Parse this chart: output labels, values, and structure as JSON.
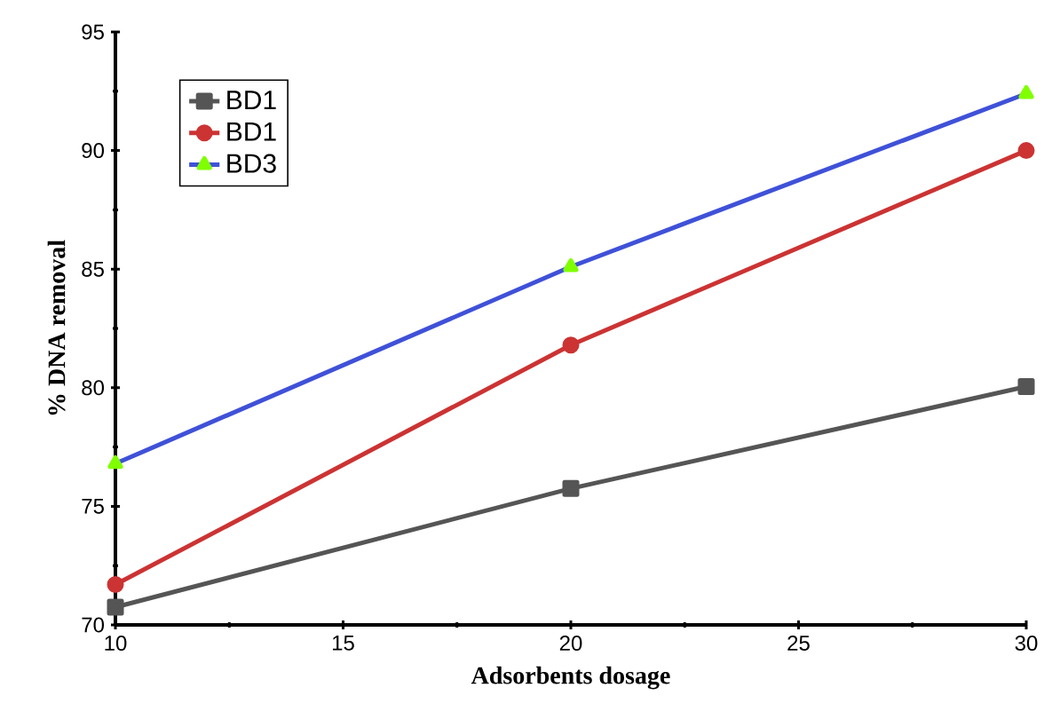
{
  "chart_data": {
    "type": "line",
    "xlabel": "Adsorbents dosage",
    "ylabel": "% DNA removal",
    "x": [
      10,
      20,
      30
    ],
    "series": [
      {
        "name": "BD1",
        "color": "#555555",
        "marker": "square",
        "values": [
          70.75,
          75.75,
          80.05
        ]
      },
      {
        "name": "BD1",
        "color": "#cc3333",
        "marker": "circle",
        "values": [
          71.7,
          81.8,
          90.0
        ]
      },
      {
        "name": "BD3",
        "color": "#3f51d8",
        "marker": "triangle",
        "colors": [
          "#80ff00",
          "#80ff00",
          "#80ff00"
        ],
        "values": [
          76.8,
          85.1,
          92.4
        ]
      }
    ],
    "xlim": [
      10,
      30
    ],
    "xticks": [
      10,
      15,
      20,
      25,
      30
    ],
    "ylim": [
      70,
      95
    ],
    "yticks": [
      70,
      75,
      80,
      85,
      90,
      95
    ],
    "grid": false,
    "legend": "top left"
  }
}
